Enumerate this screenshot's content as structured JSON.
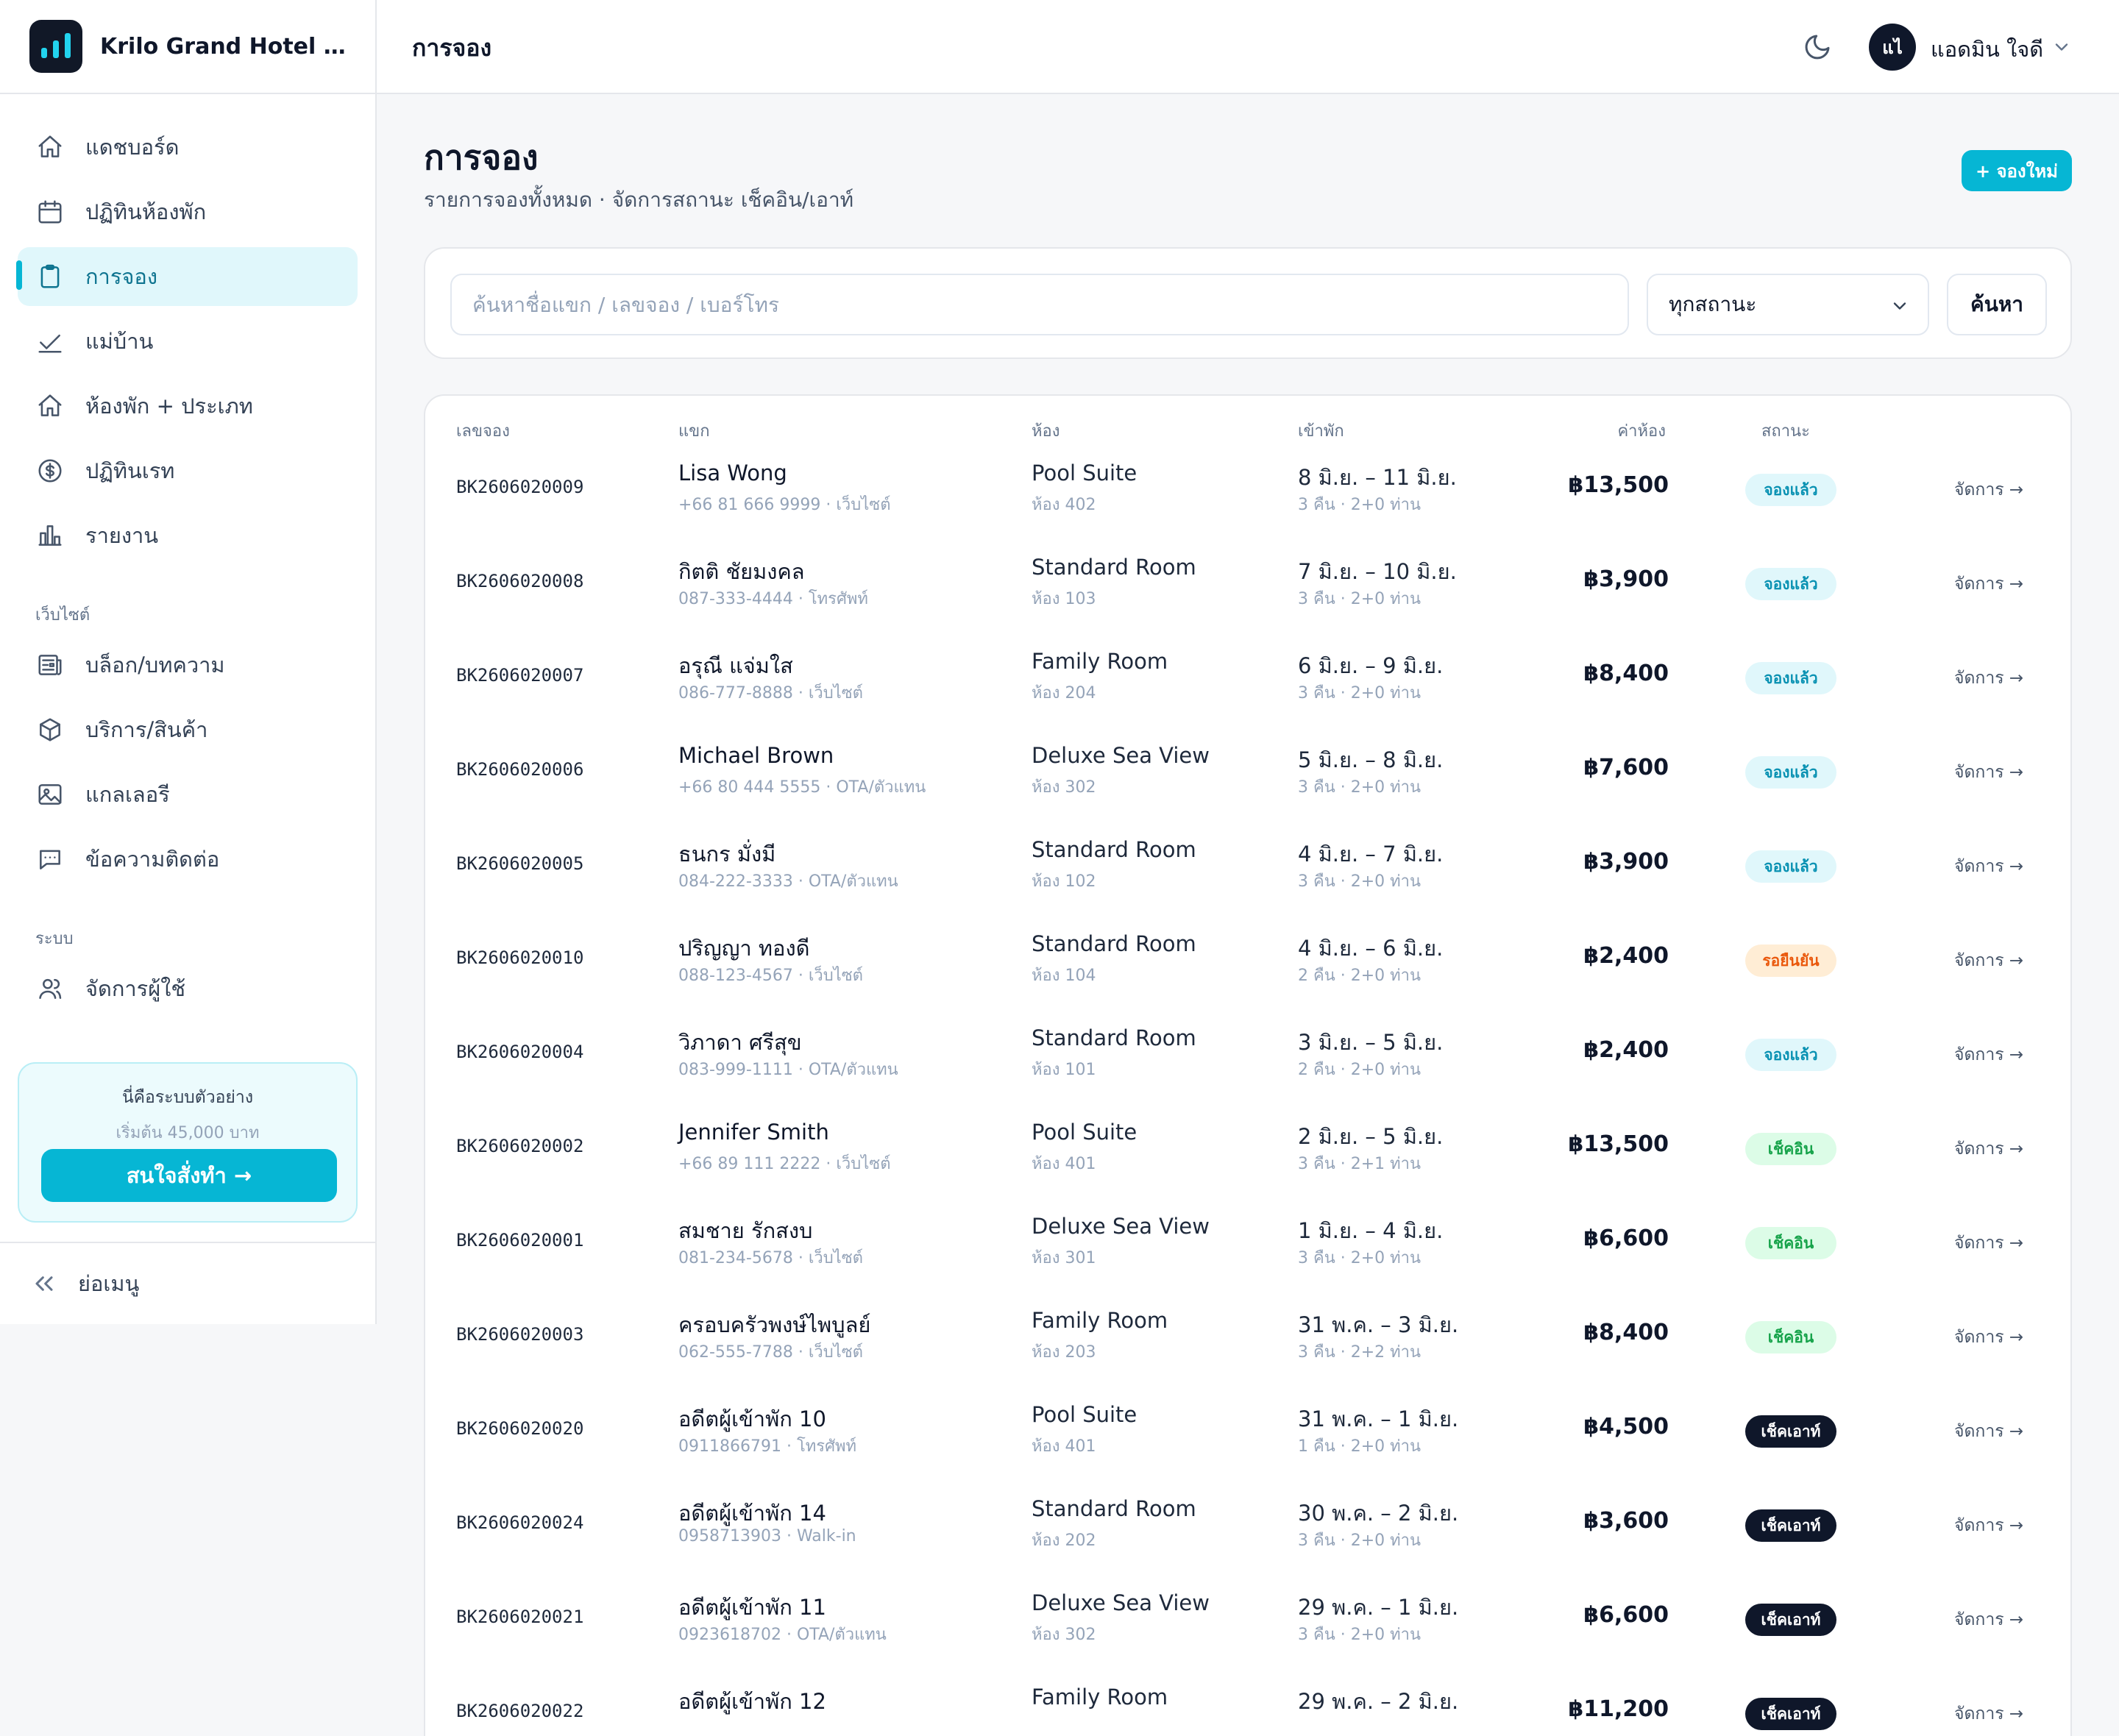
{
  "brand": {
    "name": "Krilo Grand Hotel (ตัวอย่าง)"
  },
  "sidebar": {
    "items": [
      {
        "label": "แดชบอร์ด",
        "icon": "home-icon"
      },
      {
        "label": "ปฏิทินห้องพัก",
        "icon": "calendar-icon"
      },
      {
        "label": "การจอง",
        "icon": "clipboard-icon"
      },
      {
        "label": "แม่บ้าน",
        "icon": "check-icon"
      },
      {
        "label": "ห้องพัก + ประเภท",
        "icon": "home-icon"
      },
      {
        "label": "ปฏิทินเรท",
        "icon": "dollar-circle-icon"
      },
      {
        "label": "รายงาน",
        "icon": "bar-chart-icon"
      }
    ],
    "website_section": "เว็บไซต์",
    "website_items": [
      {
        "label": "บล็อก/บทความ",
        "icon": "newspaper-icon"
      },
      {
        "label": "บริการ/สินค้า",
        "icon": "box-icon"
      },
      {
        "label": "แกลเลอรี",
        "icon": "image-icon"
      },
      {
        "label": "ข้อความติดต่อ",
        "icon": "message-icon"
      }
    ],
    "system_section": "ระบบ",
    "system_items": [
      {
        "label": "จัดการผู้ใช้",
        "icon": "users-icon"
      }
    ],
    "promo": {
      "title": "นี่คือระบบตัวอย่าง",
      "subtitle": "เริ่มต้น 45,000 บาท",
      "button": "สนใจสั่งทำ →"
    },
    "collapse_label": "ย่อเมนู"
  },
  "topbar": {
    "title": "การจอง",
    "user_initials": "แไ",
    "user_name": "แอดมิน ใจดี"
  },
  "page": {
    "title": "การจอง",
    "subtitle": "รายการจองทั้งหมด · จัดการสถานะ เช็คอิน/เอาท์",
    "new_button": "+ จองใหม่"
  },
  "filters": {
    "search_placeholder": "ค้นหาชื่อแขก / เลขจอง / เบอร์โทร",
    "status_value": "ทุกสถานะ",
    "search_button": "ค้นหา"
  },
  "table": {
    "headers": {
      "id": "เลขจอง",
      "guest": "แขก",
      "room": "ห้อง",
      "checkin": "เข้าพัก",
      "price": "ค่าห้อง",
      "status": "สถานะ"
    },
    "action_label": "จัดการ →",
    "status_colors": {
      "booked": "#0891b2",
      "pending": "#ea580c",
      "checked_in": "#16a34a",
      "checked_out": "#0f172a"
    },
    "rows": [
      {
        "id": "BK2606020009",
        "guest": "Lisa Wong",
        "guest_sub": "+66 81 666 9999 · เว็บไซต์",
        "room": "Pool Suite",
        "room_sub": "ห้อง 402",
        "date": "8 มิ.ย. – 11 มิ.ย.",
        "date_sub": "3 คืน · 2+0 ท่าน",
        "price": "฿13,500",
        "status": "จองแล้ว",
        "status_type": "booked"
      },
      {
        "id": "BK2606020008",
        "guest": "กิตติ ชัยมงคล",
        "guest_sub": "087-333-4444 · โทรศัพท์",
        "room": "Standard Room",
        "room_sub": "ห้อง 103",
        "date": "7 มิ.ย. – 10 มิ.ย.",
        "date_sub": "3 คืน · 2+0 ท่าน",
        "price": "฿3,900",
        "status": "จองแล้ว",
        "status_type": "booked"
      },
      {
        "id": "BK2606020007",
        "guest": "อรุณี แจ่มใส",
        "guest_sub": "086-777-8888 · เว็บไซต์",
        "room": "Family Room",
        "room_sub": "ห้อง 204",
        "date": "6 มิ.ย. – 9 มิ.ย.",
        "date_sub": "3 คืน · 2+0 ท่าน",
        "price": "฿8,400",
        "status": "จองแล้ว",
        "status_type": "booked"
      },
      {
        "id": "BK2606020006",
        "guest": "Michael Brown",
        "guest_sub": "+66 80 444 5555 · OTA/ตัวแทน",
        "room": "Deluxe Sea View",
        "room_sub": "ห้อง 302",
        "date": "5 มิ.ย. – 8 มิ.ย.",
        "date_sub": "3 คืน · 2+0 ท่าน",
        "price": "฿7,600",
        "status": "จองแล้ว",
        "status_type": "booked"
      },
      {
        "id": "BK2606020005",
        "guest": "ธนกร มั่งมี",
        "guest_sub": "084-222-3333 · OTA/ตัวแทน",
        "room": "Standard Room",
        "room_sub": "ห้อง 102",
        "date": "4 มิ.ย. – 7 มิ.ย.",
        "date_sub": "3 คืน · 2+0 ท่าน",
        "price": "฿3,900",
        "status": "จองแล้ว",
        "status_type": "booked"
      },
      {
        "id": "BK2606020010",
        "guest": "ปริญญา ทองดี",
        "guest_sub": "088-123-4567 · เว็บไซต์",
        "room": "Standard Room",
        "room_sub": "ห้อง 104",
        "date": "4 มิ.ย. – 6 มิ.ย.",
        "date_sub": "2 คืน · 2+0 ท่าน",
        "price": "฿2,400",
        "status": "รอยืนยัน",
        "status_type": "pending"
      },
      {
        "id": "BK2606020004",
        "guest": "วิภาดา ศรีสุข",
        "guest_sub": "083-999-1111 · OTA/ตัวแทน",
        "room": "Standard Room",
        "room_sub": "ห้อง 101",
        "date": "3 มิ.ย. – 5 มิ.ย.",
        "date_sub": "2 คืน · 2+0 ท่าน",
        "price": "฿2,400",
        "status": "จองแล้ว",
        "status_type": "booked"
      },
      {
        "id": "BK2606020002",
        "guest": "Jennifer Smith",
        "guest_sub": "+66 89 111 2222 · เว็บไซต์",
        "room": "Pool Suite",
        "room_sub": "ห้อง 401",
        "date": "2 มิ.ย. – 5 มิ.ย.",
        "date_sub": "3 คืน · 2+1 ท่าน",
        "price": "฿13,500",
        "status": "เช็คอิน",
        "status_type": "in"
      },
      {
        "id": "BK2606020001",
        "guest": "สมชาย รักสงบ",
        "guest_sub": "081-234-5678 · เว็บไซต์",
        "room": "Deluxe Sea View",
        "room_sub": "ห้อง 301",
        "date": "1 มิ.ย. – 4 มิ.ย.",
        "date_sub": "3 คืน · 2+0 ท่าน",
        "price": "฿6,600",
        "status": "เช็คอิน",
        "status_type": "in"
      },
      {
        "id": "BK2606020003",
        "guest": "ครอบครัวพงษ์ไพบูลย์",
        "guest_sub": "062-555-7788 · เว็บไซต์",
        "room": "Family Room",
        "room_sub": "ห้อง 203",
        "date": "31 พ.ค. – 3 มิ.ย.",
        "date_sub": "3 คืน · 2+2 ท่าน",
        "price": "฿8,400",
        "status": "เช็คอิน",
        "status_type": "in"
      },
      {
        "id": "BK2606020020",
        "guest": "อดีตผู้เข้าพัก 10",
        "guest_sub": "0911866791 · โทรศัพท์",
        "room": "Pool Suite",
        "room_sub": "ห้อง 401",
        "date": "31 พ.ค. – 1 มิ.ย.",
        "date_sub": "1 คืน · 2+0 ท่าน",
        "price": "฿4,500",
        "status": "เช็คเอาท์",
        "status_type": "out"
      },
      {
        "id": "BK2606020024",
        "guest": "อดีตผู้เข้าพัก 14",
        "guest_sub": "0958713903 · Walk-in",
        "room": "Standard Room",
        "room_sub": "ห้อง 202",
        "date": "30 พ.ค. – 2 มิ.ย.",
        "date_sub": "3 คืน · 2+0 ท่าน",
        "price": "฿3,600",
        "status": "เช็คเอาท์",
        "status_type": "out"
      },
      {
        "id": "BK2606020021",
        "guest": "อดีตผู้เข้าพัก 11",
        "guest_sub": "0923618702 · OTA/ตัวแทน",
        "room": "Deluxe Sea View",
        "room_sub": "ห้อง 302",
        "date": "29 พ.ค. – 1 มิ.ย.",
        "date_sub": "3 คืน · 2+0 ท่าน",
        "price": "฿6,600",
        "status": "เช็คเอาท์",
        "status_type": "out"
      },
      {
        "id": "BK2606020022",
        "guest": "อดีตผู้เข้าพัก 12",
        "guest_sub": "",
        "room": "Family Room",
        "room_sub": "",
        "date": "29 พ.ค. – 2 มิ.ย.",
        "date_sub": "",
        "price": "฿11,200",
        "status": "เช็คเอาท์",
        "status_type": "out"
      }
    ]
  }
}
